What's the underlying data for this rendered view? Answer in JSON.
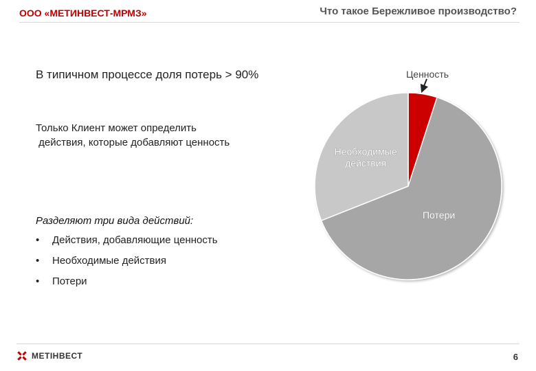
{
  "header": {
    "company": "ООО «МЕТИНВЕСТ-МРМЗ»",
    "title": "Что такое Бережливое производство?"
  },
  "content": {
    "statement": "В типичном процессе доля потерь > 90%",
    "client_note": [
      "Только Клиент может определить",
      " действия, которые добавляют ценность"
    ],
    "types_heading": "Разделяют три вида действий:",
    "types": [
      "Действия, добавляющие ценность",
      "Необходимые действия",
      "Потери"
    ],
    "bullet": "•"
  },
  "chart_data": {
    "type": "pie",
    "categories": [
      "Ценность",
      "Потери",
      "Необходимые действия"
    ],
    "values": [
      5,
      64,
      31
    ],
    "slice_labels": [
      [
        "Ценность"
      ],
      [
        "Потери"
      ],
      [
        "Необходимые",
        "действия"
      ]
    ],
    "colors": [
      "#cc0000",
      "#a6a6a6",
      "#c8c8c8"
    ],
    "start_angle_deg": 0,
    "direction": "clockwise",
    "callout": "arrow pointing to value slice"
  },
  "footer": {
    "brand": "МЕТІНВЕСТ",
    "page_number": "6",
    "logo_icon": "metinvest-logo-icon"
  }
}
